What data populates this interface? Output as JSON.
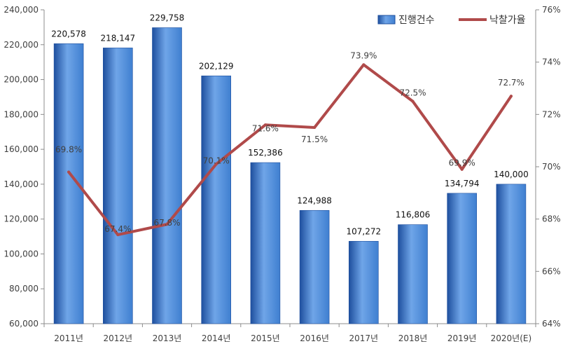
{
  "chart_data": {
    "type": "bar",
    "categories": [
      "2011년",
      "2012년",
      "2013년",
      "2014년",
      "2015년",
      "2016년",
      "2017년",
      "2018년",
      "2019년",
      "2020년(E)"
    ],
    "series": [
      {
        "name": "진행건수",
        "type": "bar",
        "axis": "left",
        "values": [
          220578,
          218147,
          229758,
          202129,
          152386,
          124988,
          107272,
          116806,
          134794,
          140000
        ],
        "labels": [
          "220,578",
          "218,147",
          "229,758",
          "202,129",
          "152,386",
          "124,988",
          "107,272",
          "116,806",
          "134,794",
          "140,000"
        ]
      },
      {
        "name": "낙찰가율",
        "type": "line",
        "axis": "right",
        "values": [
          69.8,
          67.4,
          67.8,
          70.1,
          71.6,
          71.5,
          73.9,
          72.5,
          69.9,
          72.7
        ],
        "labels": [
          "69.8%",
          "67.4%",
          "67.8%",
          "70.1%",
          "71.6%",
          "71.5%",
          "73.9%",
          "72.5%",
          "69.9%",
          "72.7%"
        ]
      }
    ],
    "y_left": {
      "range": [
        60000,
        240000
      ],
      "ticks": [
        240000,
        220000,
        200000,
        180000,
        160000,
        140000,
        120000,
        100000,
        80000,
        60000
      ],
      "tick_labels": [
        "240,000",
        "220,000",
        "200,000",
        "180,000",
        "160,000",
        "140,000",
        "120,000",
        "100,000",
        "80,000",
        "60,000"
      ]
    },
    "y_right": {
      "range": [
        64,
        76
      ],
      "ticks": [
        76,
        74,
        72,
        70,
        68,
        66,
        64
      ],
      "tick_labels": [
        "76%",
        "74%",
        "72%",
        "70%",
        "68%",
        "66%",
        "64%"
      ]
    },
    "legend": {
      "placement": "top-right",
      "bar_label": "진행건수",
      "line_label": "낙찰가율"
    },
    "grid": false,
    "colors": {
      "bar": "#3f7fd0",
      "bar_light": "#6fa5e8",
      "bar_dark": "#1e4f9e",
      "line": "#b04a4a",
      "axis": "#8c8c8c"
    }
  }
}
